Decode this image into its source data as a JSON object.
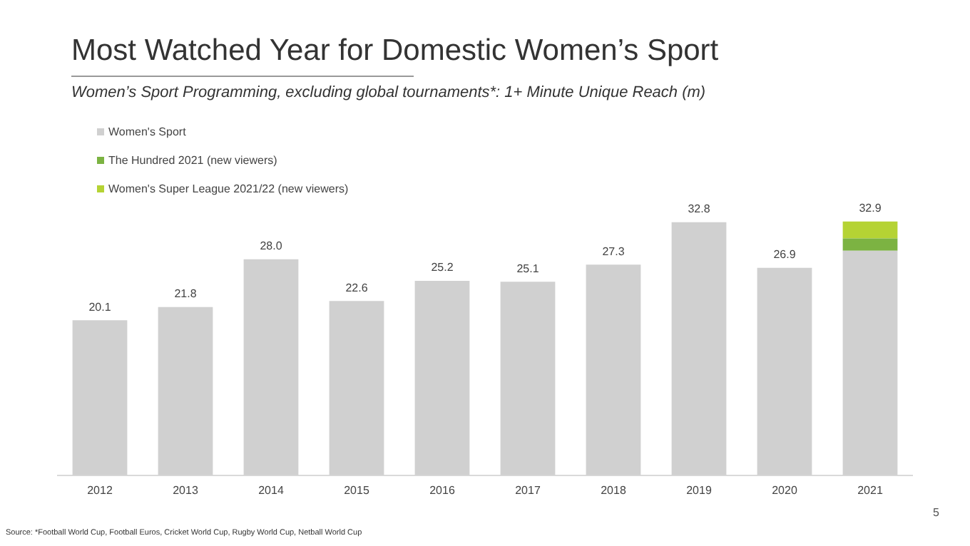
{
  "chart_data": {
    "type": "bar",
    "title": "Most Watched Year for Domestic Women’s Sport",
    "subtitle": "Women’s Sport Programming, excluding global tournaments*: 1+ Minute Unique Reach (m)",
    "categories": [
      "2012",
      "2013",
      "2014",
      "2015",
      "2016",
      "2017",
      "2018",
      "2019",
      "2020",
      "2021"
    ],
    "series": [
      {
        "name": "Women's Sport",
        "color": "#d0d0d0",
        "values": [
          20.1,
          21.8,
          28.0,
          22.6,
          25.2,
          25.1,
          27.3,
          32.8,
          26.9,
          29.1
        ],
        "value_labels": [
          "20.1",
          "21.8",
          "28.0",
          "22.6",
          "25.2",
          "25.1",
          "27.3",
          "32.8",
          "26.9",
          null
        ]
      },
      {
        "name": "The Hundred 2021 (new viewers)",
        "color": "#7cb342",
        "values": [
          null,
          null,
          null,
          null,
          null,
          null,
          null,
          null,
          null,
          1.6
        ]
      },
      {
        "name": "Women's Super League 2021/22 (new viewers)",
        "color": "#b5d334",
        "values": [
          null,
          null,
          null,
          null,
          null,
          null,
          null,
          null,
          null,
          2.2
        ]
      }
    ],
    "stacked": true,
    "totals": [
      null,
      null,
      null,
      null,
      null,
      null,
      null,
      null,
      null,
      "32.9"
    ],
    "tick_labels": "x",
    "grid": false,
    "legend": "top left",
    "annotations": [
      "Source: *Football World Cup, Football Euros, Cricket World Cup, Rugby World Cup, Netball World Cup",
      "5"
    ]
  }
}
